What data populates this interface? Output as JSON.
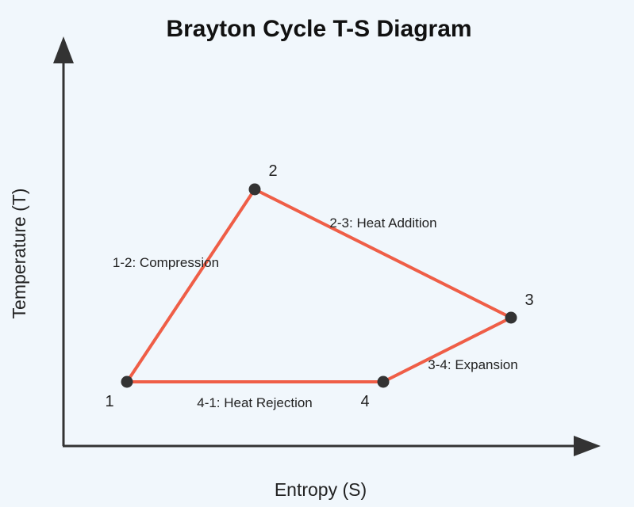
{
  "title": "Brayton Cycle T-S Diagram",
  "axes": {
    "x_label": "Entropy (S)",
    "y_label": "Temperature (T)"
  },
  "colors": {
    "background": "#f1f7fc",
    "cycle_line": "#ef5e47",
    "point": "#333333",
    "axis": "#333333"
  },
  "points": {
    "p1": "1",
    "p2": "2",
    "p3": "3",
    "p4": "4"
  },
  "processes": {
    "compression": "1-2: Compression",
    "heat_addition": "2-3: Heat Addition",
    "expansion": "3-4: Expansion",
    "heat_rejection": "4-1: Heat Rejection"
  }
}
